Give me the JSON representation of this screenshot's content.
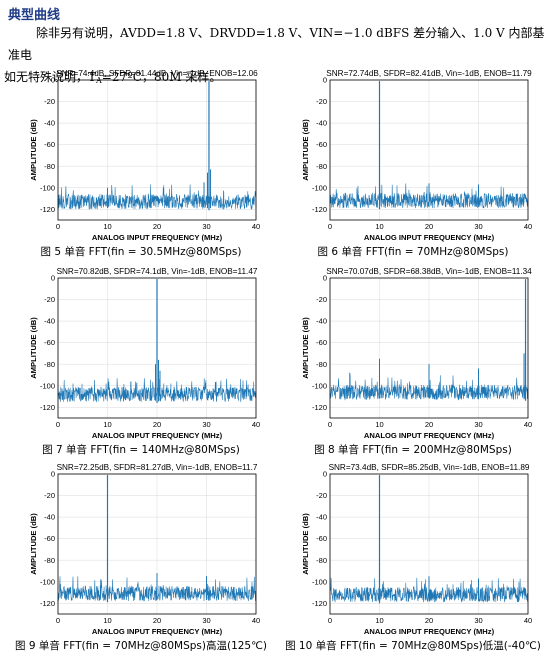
{
  "section_title": "典型曲线",
  "conditions": {
    "line1": "除非另有说明，AVDD=1.8 V、DRVDD=1.8 V、VIN=−1.0 dBFS 差分输入、1.0 V 内部基准电",
    "line2_prefix": "压。如无特殊说明，T",
    "line2_sub": "A",
    "line2_suffix": "=27ºC，80M 采样。"
  },
  "colors": {
    "trace": "#1f77b4",
    "axis": "#000000",
    "grid": "#d9d9d9",
    "title": "#1f3c88"
  },
  "chart_data": [
    {
      "type": "line",
      "title": "SNR=74.4dB, SFDR=81.44dB, Vin=-1dB, ENOB=12.06",
      "xlabel": "ANALOG INPUT FREQUENCY (MHz)",
      "ylabel": "AMPLITUDE (dB)",
      "xlim": [
        0,
        40
      ],
      "ylim": [
        -130,
        0
      ],
      "xticks": [
        0,
        10,
        20,
        30,
        40
      ],
      "yticks": [
        0,
        -20,
        -40,
        -60,
        -80,
        -100,
        -120
      ],
      "grid": true,
      "noise_floor": -113,
      "fundamental": {
        "x": 30.5,
        "y": -1
      },
      "spurs": [
        {
          "x": 30.8,
          "y": -83
        },
        {
          "x": 30.2,
          "y": -86
        },
        {
          "x": 29.5,
          "y": -95
        },
        {
          "x": 10,
          "y": -100
        }
      ],
      "caption": "图 5 单音 FFT(fin = 30.5MHz@80MSps)"
    },
    {
      "type": "line",
      "title": "SNR=72.74dB, SFDR=82.41dB, Vin=-1dB, ENOB=11.79",
      "xlabel": "ANALOG INPUT FREQUENCY (MHz)",
      "ylabel": "AMPLITUDE (dB)",
      "xlim": [
        0,
        40
      ],
      "ylim": [
        -130,
        0
      ],
      "xticks": [
        0,
        10,
        20,
        30,
        40
      ],
      "yticks": [
        0,
        -20,
        -40,
        -60,
        -80,
        -100,
        -120
      ],
      "grid": true,
      "noise_floor": -112,
      "fundamental": {
        "x": 10,
        "y": -1
      },
      "spurs": [
        {
          "x": 10,
          "y": -80
        },
        {
          "x": 20,
          "y": -96
        },
        {
          "x": 30,
          "y": -97
        }
      ],
      "caption": "图 6 单音 FFT(fin = 70MHz@80MSps)"
    },
    {
      "type": "line",
      "title": "SNR=70.82dB, SFDR=74.1dB, Vin=-1dB, ENOB=11.47",
      "xlabel": "ANALOG INPUT FREQUENCY (MHz)",
      "ylabel": "AMPLITUDE (dB)",
      "xlim": [
        0,
        40
      ],
      "ylim": [
        -130,
        0
      ],
      "xticks": [
        0,
        10,
        20,
        30,
        40
      ],
      "yticks": [
        0,
        -20,
        -40,
        -60,
        -80,
        -100,
        -120
      ],
      "grid": true,
      "noise_floor": -108,
      "fundamental": {
        "x": 20,
        "y": -1
      },
      "spurs": [
        {
          "x": 20.3,
          "y": -76
        },
        {
          "x": 19.7,
          "y": -80
        },
        {
          "x": 20.6,
          "y": -86
        }
      ],
      "caption": "图 7 单音 FFT(fin = 140MHz@80MSps)"
    },
    {
      "type": "line",
      "title": "SNR=70.07dB, SFDR=68.38dB, Vin=-1dB, ENOB=11.34",
      "xlabel": "ANALOG INPUT FREQUENCY (MHz)",
      "ylabel": "AMPLITUDE (dB)",
      "xlim": [
        0,
        40
      ],
      "ylim": [
        -130,
        0
      ],
      "xticks": [
        0,
        10,
        20,
        30,
        40
      ],
      "yticks": [
        0,
        -20,
        -40,
        -60,
        -80,
        -100,
        -120
      ],
      "grid": true,
      "noise_floor": -106,
      "fundamental": {
        "x": 39.5,
        "y": -1
      },
      "spurs": [
        {
          "x": 39.2,
          "y": -70
        },
        {
          "x": 10,
          "y": -75
        },
        {
          "x": 20,
          "y": -80
        },
        {
          "x": 30,
          "y": -84
        },
        {
          "x": 4,
          "y": -88
        }
      ],
      "caption": "图 8 单音 FFT(fin = 200MHz@80MSps)"
    },
    {
      "type": "line",
      "title": "SNR=72.25dB, SFDR=81.27dB, Vin=-1dB, ENOB=11.7",
      "xlabel": "ANALOG INPUT FREQUENCY (MHz)",
      "ylabel": "AMPLITUDE (dB)",
      "xlim": [
        0,
        40
      ],
      "ylim": [
        -130,
        0
      ],
      "xticks": [
        0,
        10,
        20,
        30,
        40
      ],
      "yticks": [
        0,
        -20,
        -40,
        -60,
        -80,
        -100,
        -120
      ],
      "grid": true,
      "noise_floor": -111,
      "fundamental": {
        "x": 10,
        "y": -1
      },
      "spurs": [
        {
          "x": 10,
          "y": -82
        },
        {
          "x": 20,
          "y": -92
        },
        {
          "x": 30,
          "y": -95
        }
      ],
      "caption": "图 9 单音 FFT(fin = 70MHz@80MSps)高温(125℃)"
    },
    {
      "type": "line",
      "title": "SNR=73.4dB, SFDR=85.25dB, Vin=-1dB, ENOB=11.89",
      "xlabel": "ANALOG INPUT FREQUENCY (MHz)",
      "ylabel": "AMPLITUDE (dB)",
      "xlim": [
        0,
        40
      ],
      "ylim": [
        -130,
        0
      ],
      "xticks": [
        0,
        10,
        20,
        30,
        40
      ],
      "yticks": [
        0,
        -20,
        -40,
        -60,
        -80,
        -100,
        -120
      ],
      "grid": true,
      "noise_floor": -112,
      "fundamental": {
        "x": 10,
        "y": -1
      },
      "spurs": [
        {
          "x": 10,
          "y": -86
        },
        {
          "x": 20,
          "y": -95
        },
        {
          "x": 30,
          "y": -97
        }
      ],
      "caption": "图 10 单音 FFT(fin = 70MHz@80MSps)低温(-40℃)"
    }
  ]
}
